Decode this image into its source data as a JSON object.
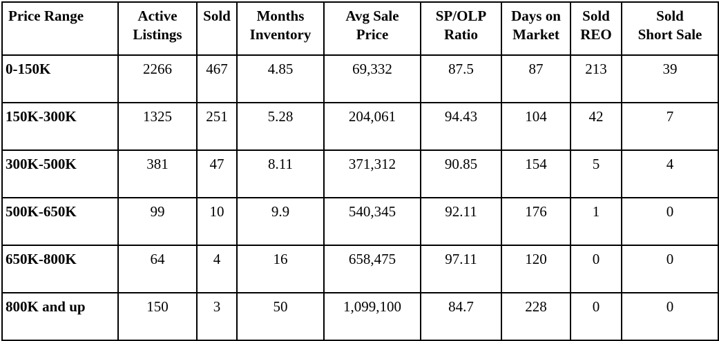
{
  "table": {
    "headers": [
      "Price Range",
      "Active\nListings",
      "Sold",
      "Months\nInventory",
      "Avg Sale\nPrice",
      "SP/OLP\nRatio",
      "Days on\nMarket",
      "Sold\nREO",
      "Sold\nShort Sale"
    ],
    "rows": [
      [
        "0-150K",
        "2266",
        "467",
        "4.85",
        "69,332",
        "87.5",
        "87",
        "213",
        "39"
      ],
      [
        "150K-300K",
        "1325",
        "251",
        "5.28",
        "204,061",
        "94.43",
        "104",
        "42",
        "7"
      ],
      [
        "300K-500K",
        "381",
        "47",
        "8.11",
        "371,312",
        "90.85",
        "154",
        "5",
        "4"
      ],
      [
        "500K-650K",
        "99",
        "10",
        "9.9",
        "540,345",
        "92.11",
        "176",
        "1",
        "0"
      ],
      [
        "650K-800K",
        "64",
        "4",
        "16",
        "658,475",
        "97.11",
        "120",
        "0",
        "0"
      ],
      [
        "800K and up",
        "150",
        "3",
        "50",
        "1,099,100",
        "84.7",
        "228",
        "0",
        "0"
      ]
    ]
  }
}
